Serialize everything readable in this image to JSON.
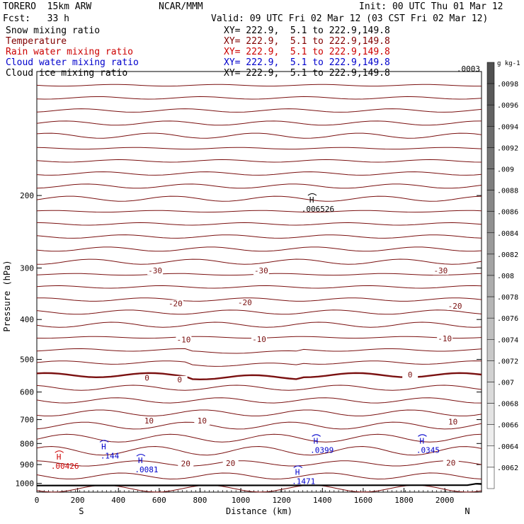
{
  "header": {
    "model": "TORERO  15km ARW",
    "center": "NCAR/MMM",
    "init": "Init: 00 UTC Thu 01 Mar 12",
    "fcst": "Fcst:   33 h",
    "valid": "Valid: 09 UTC Fri 02 Mar 12 (03 CST Fri 02 Mar 12)"
  },
  "legend": [
    {
      "label": "Snow mixing ratio",
      "xy": "XY= 222.9,  5.1 to 222.9,149.8",
      "color": "#000000"
    },
    {
      "label": "Temperature",
      "xy": "XY= 222.9,  5.1 to 222.9,149.8",
      "color": "#800000"
    },
    {
      "label": "Rain water mixing ratio",
      "xy": "XY= 222.9,  5.1 to 222.9,149.8",
      "color": "#cc0000"
    },
    {
      "label": "Cloud water mixing ratio",
      "xy": "XY= 222.9,  5.1 to 222.9,149.8",
      "color": "#0000cc"
    },
    {
      "label": "Cloud ice mixing ratio",
      "xy": "XY= 222.9,  5.1 to 222.9,149.8",
      "color": "#000000"
    }
  ],
  "chart_data": {
    "type": "cross-section",
    "xlabel": "Distance (km)",
    "ylabel": "Pressure (hPa)",
    "x_range": [
      0,
      2180
    ],
    "y_range": [
      1050,
      100
    ],
    "x_ticks": [
      0,
      200,
      400,
      600,
      800,
      1000,
      1200,
      1400,
      1600,
      1800,
      2000
    ],
    "y_ticks": [
      200,
      300,
      400,
      500,
      600,
      700,
      800,
      900,
      1000
    ],
    "x_end_labels": {
      "left": "S",
      "right": "N"
    },
    "temperature_labels": [
      {
        "value": "-30",
        "x": 580,
        "p": 308
      },
      {
        "value": "-30",
        "x": 1100,
        "p": 308
      },
      {
        "value": "-30",
        "x": 1980,
        "p": 308
      },
      {
        "value": "-20",
        "x": 680,
        "p": 370
      },
      {
        "value": "-20",
        "x": 1020,
        "p": 368
      },
      {
        "value": "-20",
        "x": 2050,
        "p": 375
      },
      {
        "value": "-10",
        "x": 720,
        "p": 453
      },
      {
        "value": "-10",
        "x": 1090,
        "p": 452
      },
      {
        "value": "-10",
        "x": 2000,
        "p": 450
      },
      {
        "value": "0",
        "x": 540,
        "p": 561
      },
      {
        "value": "0",
        "x": 700,
        "p": 566
      },
      {
        "value": "0",
        "x": 1830,
        "p": 551
      },
      {
        "value": "10",
        "x": 550,
        "p": 713
      },
      {
        "value": "10",
        "x": 810,
        "p": 713
      },
      {
        "value": "10",
        "x": 2040,
        "p": 716
      },
      {
        "value": "20",
        "x": 730,
        "p": 906
      },
      {
        "value": "20",
        "x": 950,
        "p": 903
      },
      {
        "value": "20",
        "x": 2030,
        "p": 901
      }
    ],
    "maxima": [
      {
        "label": "H",
        "value": ".006526",
        "x": 1350,
        "p": 208,
        "field": "snow",
        "color": "#000000"
      },
      {
        "label": "H",
        "value": ".144",
        "x": 330,
        "p": 826,
        "field": "cloud water",
        "color": "#0000cc"
      },
      {
        "label": "H",
        "value": ".0399",
        "x": 1370,
        "p": 800,
        "field": "cloud water",
        "color": "#0000cc"
      },
      {
        "label": "H",
        "value": ".0345",
        "x": 1890,
        "p": 800,
        "field": "cloud water",
        "color": "#0000cc"
      },
      {
        "label": "H",
        "value": ".0081",
        "x": 510,
        "p": 893,
        "field": "cloud water",
        "color": "#0000cc"
      },
      {
        "label": "H",
        "value": ".1471",
        "x": 1280,
        "p": 953,
        "field": "cloud water",
        "color": "#0000cc"
      },
      {
        "label": "H",
        "value": ".00426",
        "x": 110,
        "p": 876,
        "field": "rain water",
        "color": "#cc0000"
      }
    ],
    "corner_value": ".0003",
    "colorbar": {
      "unit": "g kg-1",
      "min": 0.0062,
      "max": 0.01,
      "labels": [
        ".0098",
        ".0096",
        ".0094",
        ".0092",
        ".009",
        ".0088",
        ".0086",
        ".0084",
        ".0082",
        ".008",
        ".0078",
        ".0076",
        ".0074",
        ".0072",
        ".007",
        ".0068",
        ".0066",
        ".0064",
        ".0062"
      ]
    }
  }
}
